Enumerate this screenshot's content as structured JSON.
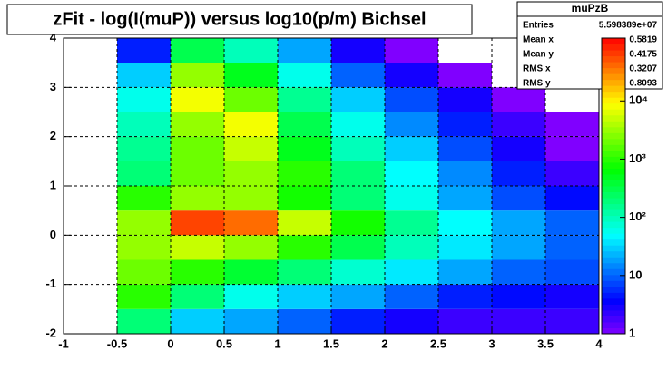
{
  "chart_data": {
    "type": "heatmap",
    "title": "zFit - log(I(muP)) versus log10(p/m) Bichsel",
    "x_bins": [
      -1,
      -0.5,
      0,
      0.5,
      1,
      1.5,
      2,
      2.5,
      3,
      3.5,
      4
    ],
    "y_bins": [
      -2,
      -1.5,
      -1,
      -0.5,
      0,
      0.5,
      1,
      1.5,
      2,
      2.5,
      3,
      3.5,
      4
    ],
    "z": [
      [
        null,
        200,
        30,
        20,
        10,
        5,
        3,
        2,
        2,
        2
      ],
      [
        null,
        1000,
        200,
        60,
        30,
        20,
        10,
        5,
        4,
        3
      ],
      [
        null,
        2000,
        1000,
        400,
        200,
        80,
        40,
        20,
        10,
        8
      ],
      [
        null,
        3000,
        5000,
        3000,
        1000,
        300,
        100,
        40,
        20,
        10
      ],
      [
        null,
        3000,
        60000,
        40000,
        5000,
        800,
        150,
        50,
        20,
        10
      ],
      [
        null,
        1000,
        3000,
        3000,
        800,
        200,
        60,
        20,
        8,
        4
      ],
      [
        null,
        200,
        2000,
        3000,
        1000,
        200,
        50,
        15,
        5,
        2
      ],
      [
        null,
        150,
        2000,
        5000,
        500,
        100,
        30,
        8,
        3,
        1
      ],
      [
        null,
        100,
        3000,
        8000,
        300,
        60,
        15,
        5,
        2,
        1
      ],
      [
        null,
        60,
        8000,
        2000,
        150,
        30,
        8,
        3,
        1,
        null
      ],
      [
        null,
        30,
        3000,
        500,
        60,
        10,
        3,
        1,
        null,
        null
      ],
      [
        null,
        5,
        300,
        100,
        20,
        3,
        1,
        null,
        null,
        null
      ]
    ],
    "xlim": [
      -1,
      4
    ],
    "xticks": [
      -1,
      -0.5,
      0,
      0.5,
      1,
      1.5,
      2,
      2.5,
      3,
      3.5,
      4
    ],
    "ylim": [
      -2,
      4
    ],
    "yticks": [
      -2,
      -1,
      0,
      1,
      2,
      3,
      4
    ],
    "zlim": [
      1,
      120000
    ],
    "zlog": true,
    "zticks": [
      1,
      10,
      {
        "value": 100,
        "label": "10²"
      },
      {
        "value": 1000,
        "label": "10³"
      },
      {
        "value": 10000,
        "label": "10⁴"
      }
    ],
    "grid": true,
    "stats": {
      "title": "muPzB",
      "rows": [
        [
          "Entries",
          "5.598389e+07"
        ],
        [
          "Mean x",
          "0.5819"
        ],
        [
          "Mean y",
          "0.4175"
        ],
        [
          "RMS x",
          "0.3207"
        ],
        [
          "RMS y",
          "0.8093"
        ]
      ]
    }
  }
}
